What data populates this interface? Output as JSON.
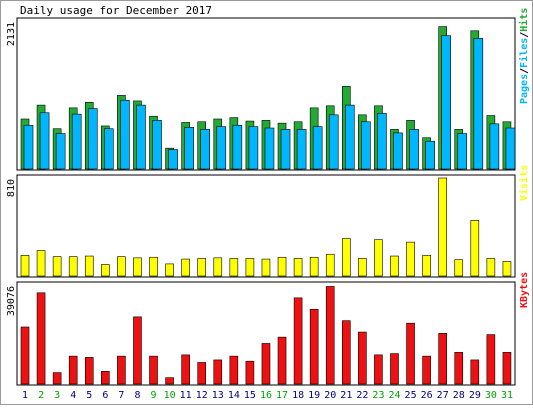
{
  "chart_data": {
    "type": "bar",
    "title": "Daily usage for December 2017",
    "categories": [
      "1",
      "2",
      "3",
      "4",
      "5",
      "6",
      "7",
      "8",
      "9",
      "10",
      "11",
      "12",
      "13",
      "14",
      "15",
      "16",
      "17",
      "18",
      "19",
      "20",
      "21",
      "22",
      "23",
      "24",
      "25",
      "26",
      "27",
      "28",
      "29",
      "30",
      "31"
    ],
    "weekend_days": [
      "2",
      "3",
      "9",
      "10",
      "16",
      "17",
      "23",
      "24",
      "30",
      "31"
    ],
    "colors": {
      "hits": "#22aa33",
      "files": "#00b6ff",
      "visits": "#ffff00",
      "kbytes": "#ee1111",
      "weekday_label": "#000080",
      "weekend_label": "#00a000",
      "frame": "#000000",
      "panel_bg": "#ffffff",
      "border": "#9a9a9a"
    },
    "panels": [
      {
        "id": "pages-files-hits",
        "ymax_label": "2131",
        "ylim": [
          0,
          2131
        ],
        "legend_parts": [
          {
            "text": "Pages",
            "color": "#00b6ff"
          },
          {
            "text": "/",
            "color": "#000000"
          },
          {
            "text": "Files",
            "color": "#00b6ff"
          },
          {
            "text": "/",
            "color": "#000000"
          },
          {
            "text": "Hits",
            "color": "#22aa33"
          }
        ],
        "series": [
          {
            "name": "Hits",
            "values": [
              720,
              920,
              580,
              880,
              960,
              620,
              1060,
              980,
              760,
              300,
              670,
              680,
              720,
              740,
              690,
              700,
              660,
              680,
              880,
              910,
              1190,
              780,
              910,
              570,
              700,
              450,
              2050,
              570,
              1990,
              770,
              680
            ]
          },
          {
            "name": "Files",
            "values": [
              630,
              810,
              510,
              790,
              870,
              580,
              990,
              920,
              700,
              280,
              600,
              570,
              610,
              630,
              610,
              590,
              570,
              570,
              610,
              780,
              920,
              680,
              800,
              520,
              570,
              400,
              1920,
              510,
              1880,
              650,
              590
            ]
          }
        ]
      },
      {
        "id": "visits",
        "ymax_label": "810",
        "ylim": [
          0,
          810
        ],
        "legend_parts": [
          {
            "text": "Visits",
            "color": "#ffff00"
          }
        ],
        "series": [
          {
            "name": "Visits",
            "values": [
              170,
              210,
              160,
              160,
              165,
              95,
              160,
              150,
              155,
              100,
              140,
              145,
              150,
              145,
              145,
              140,
              155,
              145,
              155,
              180,
              310,
              145,
              300,
              165,
              280,
              170,
              810,
              135,
              460,
              145,
              120
            ]
          }
        ]
      },
      {
        "id": "kbytes",
        "ymax_label": "39076",
        "ylim": [
          0,
          39076
        ],
        "legend_parts": [
          {
            "text": "KBytes",
            "color": "#ee1111"
          }
        ],
        "series": [
          {
            "name": "KBytes",
            "values": [
              22500,
              36000,
              4500,
              11000,
              10500,
              5000,
              11000,
              26500,
              11000,
              2500,
              11500,
              8500,
              9500,
              11000,
              9000,
              16000,
              18500,
              34000,
              29500,
              38500,
              25000,
              20500,
              11500,
              12000,
              24000,
              11000,
              20000,
              12500,
              9500,
              19500,
              12500
            ]
          }
        ]
      }
    ]
  }
}
